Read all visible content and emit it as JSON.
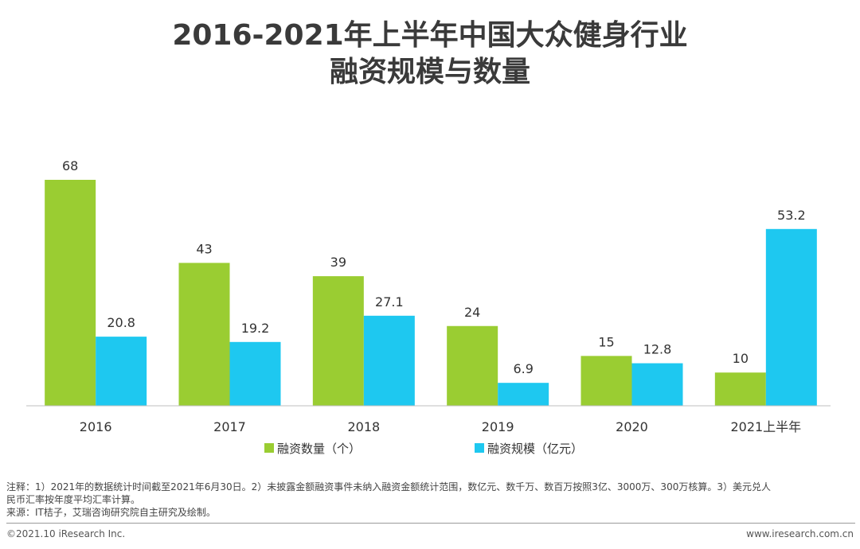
{
  "title": {
    "line1": "2016-2021年上半年中国大众健身行业",
    "line2": "融资规模与数量"
  },
  "chart_data": {
    "type": "bar",
    "categories": [
      "2016",
      "2017",
      "2018",
      "2019",
      "2020",
      "2021上半年"
    ],
    "series": [
      {
        "name": "融资数量（个）",
        "values": [
          68,
          43,
          39,
          24,
          15,
          10
        ],
        "color": "#9acd32"
      },
      {
        "name": "融资规模（亿元）",
        "values": [
          20.8,
          19.2,
          27.1,
          6.9,
          12.8,
          53.2
        ],
        "color": "#1ec8f0"
      }
    ],
    "data_labels": {
      "0": [
        "68",
        "43",
        "39",
        "24",
        "15",
        "10"
      ],
      "1": [
        "20.8",
        "19.2",
        "27.1",
        "6.9",
        "12.8",
        "53.2"
      ]
    },
    "ylim": [
      0,
      80
    ],
    "grid": false,
    "legend": "bottom-center"
  },
  "notes": {
    "line1": "注释：1）2021年的数据统计时间截至2021年6月30日。2）未披露金额融资事件未纳入融资金额统计范围，数亿元、数千万、数百万按照3亿、3000万、300万核算。3）美元兑人",
    "line2": "民币汇率按年度平均汇率计算。",
    "source": "来源：IT桔子，艾瑞咨询研究院自主研究及绘制。"
  },
  "footer": {
    "copyright": "©2021.10 iResearch Inc.",
    "website": "www.iresearch.com.cn"
  }
}
